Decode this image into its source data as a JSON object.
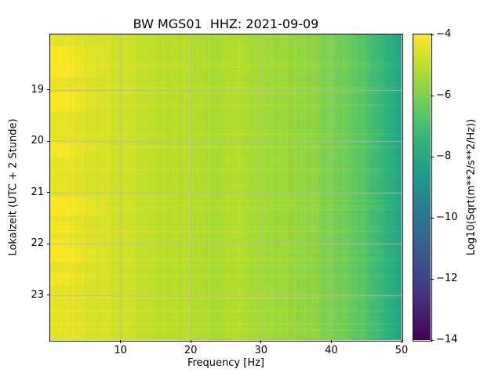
{
  "chart_data": {
    "type": "heatmap",
    "title": "BW MGS01  HHZ: 2021-09-09",
    "xlabel": "Frequency [Hz]",
    "ylabel": "Lokalzeit (UTC + 2 Stunde)",
    "x_ticks": [
      10,
      20,
      30,
      40,
      50
    ],
    "x_range_hz": [
      0,
      50
    ],
    "y_ticks": [
      19,
      20,
      21,
      22,
      23
    ],
    "y_ticks_unit": "hour of local day, time increasing downward",
    "y_range_hours": [
      17.92,
      23.87
    ],
    "grid": true,
    "grid_color": "#b4b4bc",
    "colormap": "viridis",
    "colormap_stops": [
      "#440154",
      "#482878",
      "#3e4989",
      "#31688e",
      "#26828e",
      "#1f9e89",
      "#35b779",
      "#6ece58",
      "#b5de2b",
      "#fde725"
    ],
    "colorbar": {
      "label": "Log10(Sqrt(m**2/s**2/Hz))",
      "ticks": [
        -4,
        -6,
        -8,
        -10,
        -12,
        -14
      ],
      "vmin": -14,
      "vmax": -4
    },
    "spectral_profile": {
      "frequencies_hz": [
        0.5,
        3,
        6,
        9,
        12,
        15,
        17,
        20,
        23,
        26,
        29,
        32,
        35,
        38,
        41,
        44,
        47,
        50
      ],
      "mean_log10_sqrt_psd": [
        -4.35,
        -4.45,
        -4.55,
        -4.7,
        -4.8,
        -5.0,
        -5.05,
        -5.1,
        -5.3,
        -5.2,
        -5.35,
        -5.5,
        -5.6,
        -5.8,
        -6.1,
        -6.6,
        -7.3,
        -8.2
      ]
    },
    "features": {
      "bright_low_freq_patches": [
        {
          "start_hour": 18.15,
          "end_hour": 18.75,
          "max_freq_hz": 9,
          "boost": 0.35
        },
        {
          "start_hour": 19.05,
          "end_hour": 19.4,
          "max_freq_hz": 8,
          "boost": 0.4
        },
        {
          "start_hour": 20.0,
          "end_hour": 20.3,
          "max_freq_hz": 7,
          "boost": 0.3
        },
        {
          "start_hour": 21.1,
          "end_hour": 21.45,
          "max_freq_hz": 9,
          "boost": 0.45
        },
        {
          "start_hour": 21.55,
          "end_hour": 21.78,
          "max_freq_hz": 6,
          "boost": 0.3
        },
        {
          "start_hour": 21.9,
          "end_hour": 22.35,
          "max_freq_hz": 8,
          "boost": 0.4
        },
        {
          "start_hour": 22.55,
          "end_hour": 22.78,
          "max_freq_hz": 7,
          "boost": 0.3
        }
      ],
      "broadband_event_lines_hours": [
        18.55,
        18.95,
        19.05,
        19.3,
        20.1,
        20.55,
        21.15,
        21.32,
        21.75,
        22.0,
        22.3,
        22.62,
        23.05,
        23.3,
        23.55
      ]
    }
  }
}
